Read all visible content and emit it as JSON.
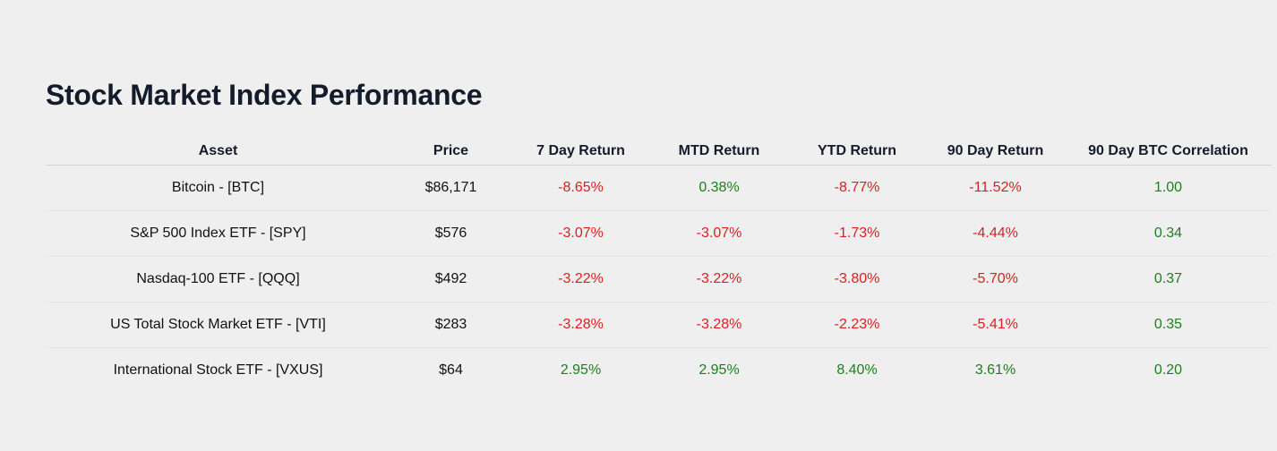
{
  "title": "Stock Market Index Performance",
  "colors": {
    "negative": "#d91f1f",
    "positive": "#1d7f1d"
  },
  "table": {
    "headers": [
      "Asset",
      "Price",
      "7 Day Return",
      "MTD Return",
      "YTD Return",
      "90 Day Return",
      "90 Day BTC Correlation"
    ],
    "rows": [
      {
        "asset": "Bitcoin - [BTC]",
        "price": "$86,171",
        "ret7d": "-8.65%",
        "mtd": "0.38%",
        "ytd": "-8.77%",
        "ret90d": "-11.52%",
        "corr": "1.00"
      },
      {
        "asset": "S&P 500 Index ETF - [SPY]",
        "price": "$576",
        "ret7d": "-3.07%",
        "mtd": "-3.07%",
        "ytd": "-1.73%",
        "ret90d": "-4.44%",
        "corr": "0.34"
      },
      {
        "asset": "Nasdaq-100 ETF - [QQQ]",
        "price": "$492",
        "ret7d": "-3.22%",
        "mtd": "-3.22%",
        "ytd": "-3.80%",
        "ret90d": "-5.70%",
        "corr": "0.37"
      },
      {
        "asset": "US Total Stock Market ETF - [VTI]",
        "price": "$283",
        "ret7d": "-3.28%",
        "mtd": "-3.28%",
        "ytd": "-2.23%",
        "ret90d": "-5.41%",
        "corr": "0.35"
      },
      {
        "asset": "International Stock ETF - [VXUS]",
        "price": "$64",
        "ret7d": "2.95%",
        "mtd": "2.95%",
        "ytd": "8.40%",
        "ret90d": "3.61%",
        "corr": "0.20"
      }
    ]
  }
}
